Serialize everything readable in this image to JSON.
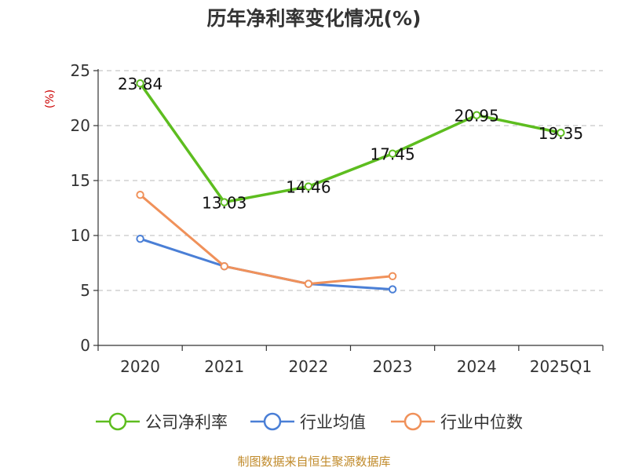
{
  "chart_data": {
    "type": "line",
    "title": "历年净利率变化情况(%)",
    "ylabel": "(%)",
    "xlabel": "",
    "ylim": [
      0,
      25
    ],
    "yticks": [
      0,
      5,
      10,
      15,
      20,
      25
    ],
    "grid": true,
    "categories": [
      "2020",
      "2021",
      "2022",
      "2023",
      "2024",
      "2025Q1"
    ],
    "series": [
      {
        "name": "公司净利率",
        "color": "#5dbd1f",
        "values": [
          23.84,
          13.03,
          14.46,
          17.45,
          20.95,
          19.35
        ],
        "labels": [
          "23.84",
          "13.03",
          "14.46",
          "17.45",
          "20.95",
          "19.35"
        ]
      },
      {
        "name": "行业均值",
        "color": "#4a7fd6",
        "values": [
          9.7,
          7.2,
          5.6,
          5.1,
          null,
          null
        ],
        "labels": []
      },
      {
        "name": "行业中位数",
        "color": "#f0915a",
        "values": [
          13.7,
          7.2,
          5.6,
          6.3,
          null,
          null
        ],
        "labels": []
      }
    ],
    "legend_position": "bottom"
  },
  "footer": "制图数据来自恒生聚源数据库"
}
